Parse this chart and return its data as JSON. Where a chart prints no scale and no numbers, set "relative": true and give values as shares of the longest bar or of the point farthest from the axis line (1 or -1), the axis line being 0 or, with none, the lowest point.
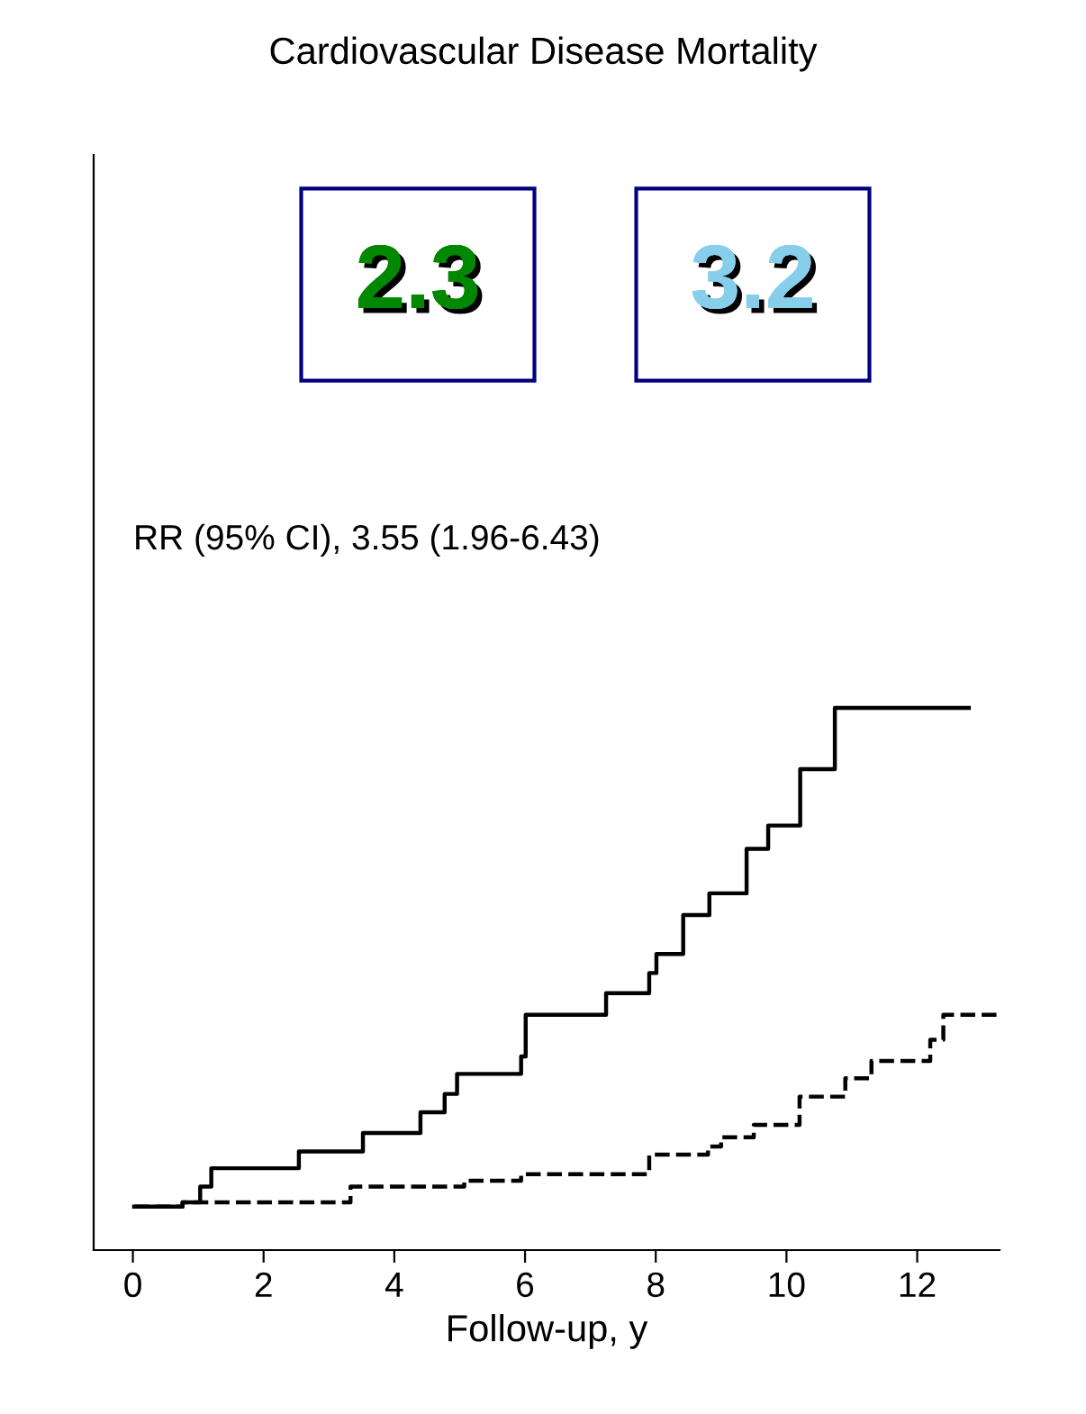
{
  "chart_data": {
    "type": "step",
    "title": "Cardiovascular Disease Mortality",
    "xlabel": "Follow-up, y",
    "relative": true,
    "xlim": [
      -0.6,
      13.26
    ],
    "xticks": [
      0,
      2,
      4,
      6,
      8,
      10,
      12
    ],
    "grid": false,
    "marker": "none",
    "annotations": [
      "2.3",
      "3.2",
      "RR (95% CI), 3.55 (1.96-6.43)"
    ],
    "series": [
      {
        "color": "#000000",
        "line_style": "solid",
        "x": [
          0.02,
          0.76,
          1.03,
          1.2,
          2.54,
          3.52,
          4.4,
          4.77,
          4.96,
          5.94,
          6.01,
          7.24,
          7.9,
          8.01,
          8.42,
          8.82,
          9.39,
          9.72,
          10.21,
          10.74,
          12.79
        ],
        "values": [
          0.08,
          0.088,
          0.117,
          0.151,
          0.182,
          0.216,
          0.254,
          0.288,
          0.325,
          0.357,
          0.434,
          0.474,
          0.511,
          0.546,
          0.618,
          0.658,
          0.74,
          0.783,
          0.887,
          1.0,
          1.0
        ]
      },
      {
        "color": "#000000",
        "line_style": "dashed",
        "x": [
          0.02,
          0.76,
          3.33,
          5.07,
          5.94,
          7.9,
          8.8,
          9.0,
          9.5,
          10.2,
          10.9,
          11.3,
          12.2,
          12.4,
          13.26
        ],
        "values": [
          0.08,
          0.088,
          0.117,
          0.128,
          0.14,
          0.176,
          0.191,
          0.208,
          0.231,
          0.283,
          0.317,
          0.349,
          0.388,
          0.434,
          0.434
        ]
      }
    ]
  }
}
